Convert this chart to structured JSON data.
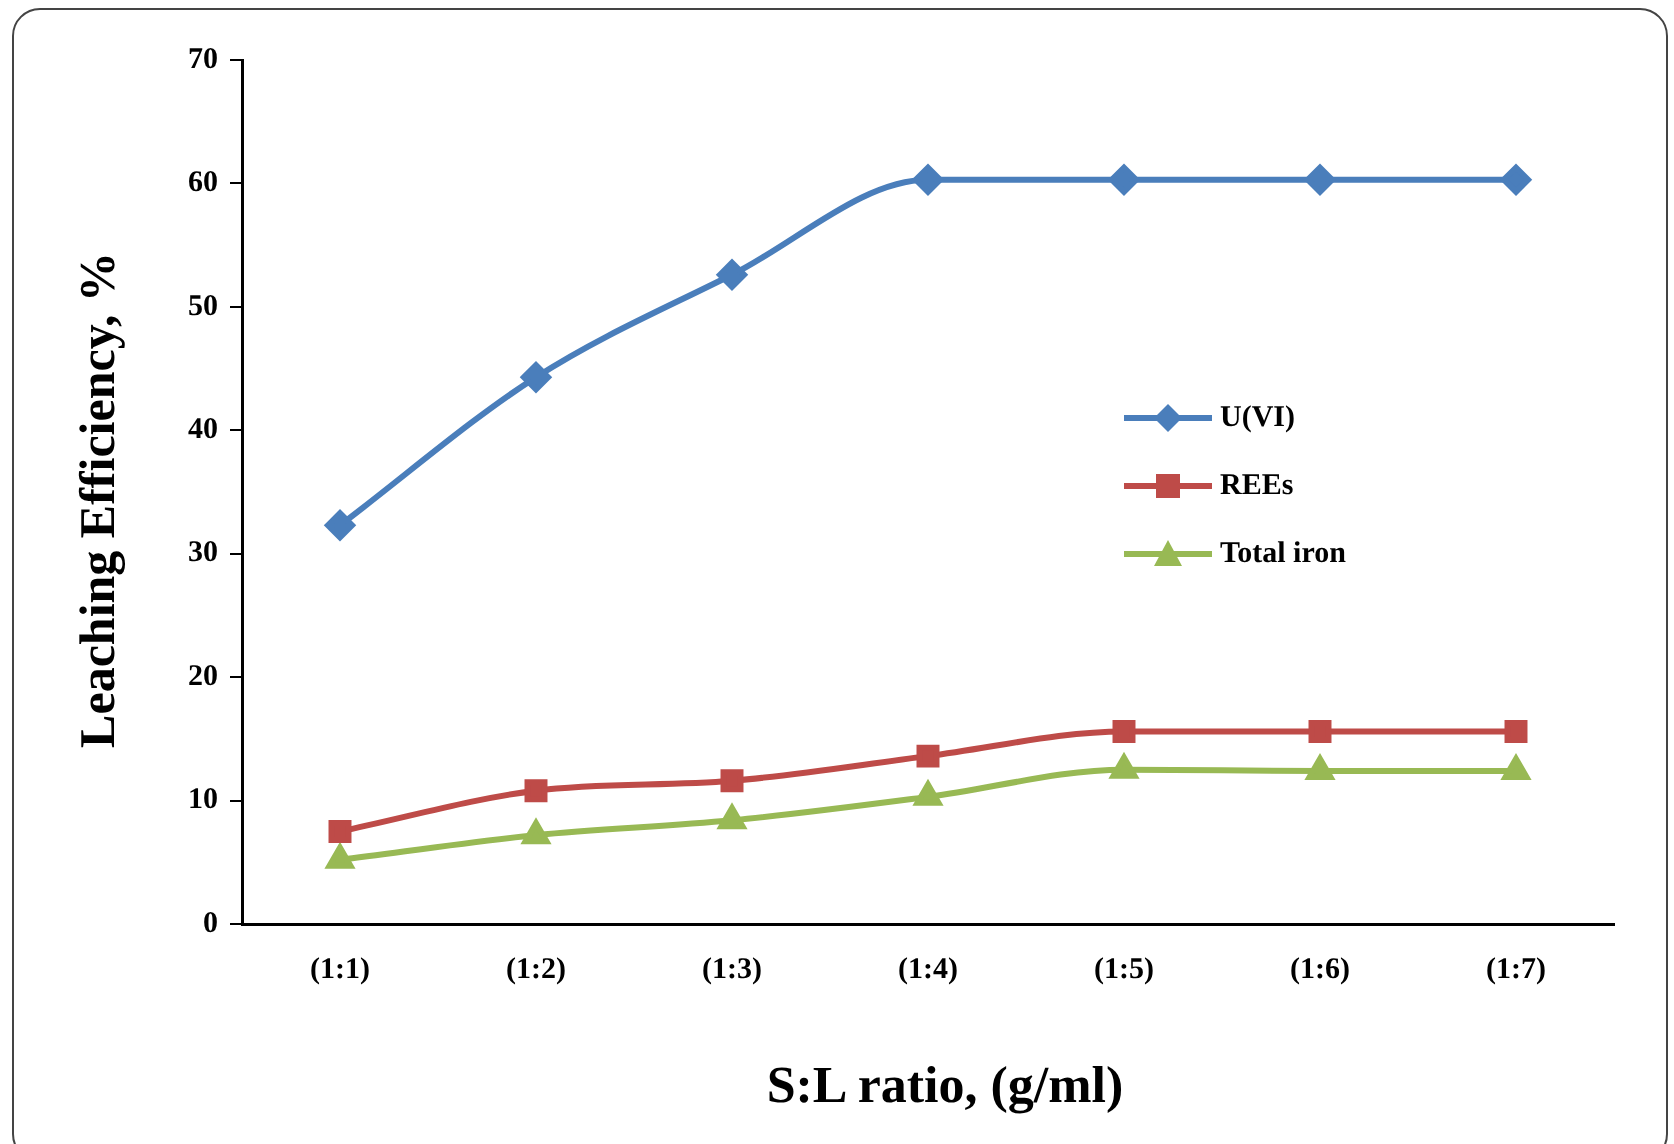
{
  "chart_data": {
    "type": "line",
    "xlabel": "S:L ratio, (g/ml)",
    "ylabel": "Leaching Efficiency, %",
    "categories": [
      "(1:1)",
      "(1:2)",
      "(1:3)",
      "(1:4)",
      "(1:5)",
      "(1:6)",
      "(1:7)"
    ],
    "series": [
      {
        "name": "U(VI)",
        "color": "#4a7ebb",
        "marker": "diamond",
        "values": [
          32.3,
          44.3,
          52.6,
          60.3,
          60.3,
          60.3,
          60.3
        ]
      },
      {
        "name": "REEs",
        "color": "#be4b48",
        "marker": "square",
        "values": [
          7.5,
          10.8,
          11.6,
          13.6,
          15.6,
          15.6,
          15.6
        ]
      },
      {
        "name": "Total iron",
        "color": "#98b954",
        "marker": "triangle",
        "values": [
          5.2,
          7.2,
          8.4,
          10.3,
          12.5,
          12.4,
          12.4
        ]
      }
    ],
    "ylim": [
      0,
      70
    ],
    "yticks": [
      0,
      10,
      20,
      30,
      40,
      50,
      60,
      70
    ],
    "grid": false,
    "legend": "right",
    "line_style": "solid"
  }
}
